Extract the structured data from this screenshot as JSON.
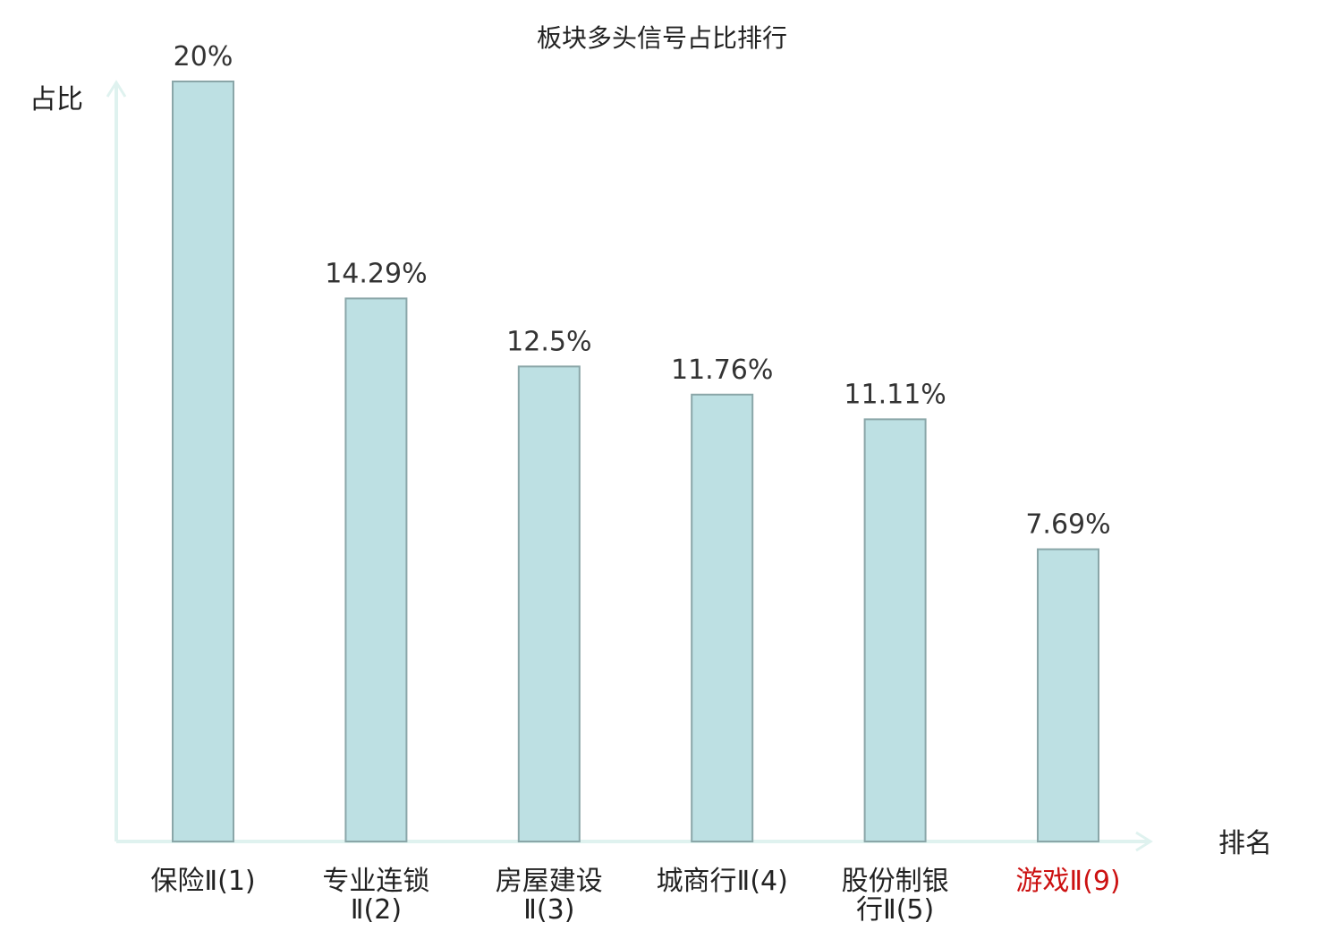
{
  "chart_data": {
    "type": "bar",
    "title": "板块多头信号占比排行",
    "ylabel": "占比",
    "xlabel": "排名",
    "ylim": [
      0,
      20
    ],
    "categories": [
      [
        "保险Ⅱ(1)"
      ],
      [
        "专业连锁",
        "Ⅱ(2)"
      ],
      [
        "房屋建设",
        "Ⅱ(3)"
      ],
      [
        "城商行Ⅱ(4)"
      ],
      [
        "股份制银",
        "行Ⅱ(5)"
      ],
      [
        "游戏Ⅱ(9)"
      ]
    ],
    "values": [
      20,
      14.29,
      12.5,
      11.76,
      11.11,
      7.69
    ],
    "value_labels": [
      "20%",
      "14.29%",
      "12.5%",
      "11.76%",
      "11.11%",
      "7.69%"
    ],
    "highlight_index": 5,
    "grid": false,
    "colors": {
      "bar_fill": "#bde0e3",
      "bar_stroke": "#8aa6a8",
      "axis": "#dff2ef",
      "text": "#222222",
      "highlight_text": "#cc1111"
    }
  }
}
